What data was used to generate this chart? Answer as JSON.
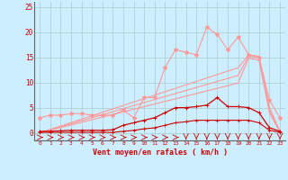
{
  "x": [
    0,
    1,
    2,
    3,
    4,
    5,
    6,
    7,
    8,
    9,
    10,
    11,
    12,
    13,
    14,
    15,
    16,
    17,
    18,
    19,
    20,
    21,
    22,
    23
  ],
  "line_gust_light": [
    3.0,
    3.5,
    3.5,
    3.8,
    3.8,
    3.5,
    3.5,
    3.5,
    4.5,
    3.0,
    7.0,
    7.0,
    13.0,
    16.5,
    16.0,
    15.5,
    21.0,
    19.5,
    16.5,
    19.0,
    15.5,
    15.0,
    6.5,
    3.0
  ],
  "line_trend1": [
    0.0,
    0.68,
    1.36,
    2.04,
    2.72,
    3.4,
    4.08,
    4.76,
    5.44,
    6.12,
    6.8,
    7.48,
    8.16,
    8.84,
    9.52,
    10.2,
    10.88,
    11.56,
    12.24,
    12.92,
    15.5,
    15.2,
    5.0,
    0.3
  ],
  "line_trend2": [
    0.0,
    0.6,
    1.2,
    1.8,
    2.4,
    3.0,
    3.6,
    4.2,
    4.8,
    5.4,
    6.0,
    6.6,
    7.2,
    7.8,
    8.4,
    9.0,
    9.6,
    10.2,
    10.8,
    11.4,
    15.2,
    14.8,
    4.5,
    0.2
  ],
  "line_trend3": [
    0.0,
    0.52,
    1.04,
    1.56,
    2.08,
    2.6,
    3.12,
    3.64,
    4.16,
    4.68,
    5.2,
    5.72,
    6.24,
    6.76,
    7.28,
    7.8,
    8.32,
    8.84,
    9.36,
    9.88,
    14.8,
    14.4,
    4.0,
    0.1
  ],
  "line_mean_dark": [
    0.3,
    0.3,
    0.4,
    0.5,
    0.5,
    0.5,
    0.5,
    0.6,
    1.5,
    2.0,
    2.5,
    3.0,
    4.0,
    5.0,
    5.0,
    5.2,
    5.5,
    7.0,
    5.2,
    5.2,
    5.0,
    4.0,
    1.0,
    0.3
  ],
  "line_min_dark": [
    0.1,
    0.1,
    0.1,
    0.1,
    0.1,
    0.1,
    0.1,
    0.1,
    0.3,
    0.5,
    0.8,
    1.0,
    1.5,
    2.0,
    2.2,
    2.5,
    2.5,
    2.5,
    2.5,
    2.5,
    2.5,
    2.0,
    0.5,
    0.1
  ],
  "arrows_right": [
    0,
    1,
    2,
    3,
    4,
    5,
    6,
    7,
    8,
    9,
    10,
    11,
    12,
    13
  ],
  "arrows_down": [
    14,
    15,
    16,
    17,
    18,
    19,
    20,
    21,
    22,
    23
  ],
  "bg_color": "#cceeff",
  "grid_color": "#aacccc",
  "line_color_dark": "#cc0000",
  "line_color_light": "#ff9999",
  "xlabel": "Vent moyen/en rafales ( km/h )",
  "ylim": [
    -1.5,
    26
  ],
  "xlim": [
    -0.5,
    23.5
  ],
  "yticks": [
    0,
    5,
    10,
    15,
    20,
    25
  ],
  "xticks": [
    0,
    1,
    2,
    3,
    4,
    5,
    6,
    7,
    8,
    9,
    10,
    11,
    12,
    13,
    14,
    15,
    16,
    17,
    18,
    19,
    20,
    21,
    22,
    23
  ]
}
